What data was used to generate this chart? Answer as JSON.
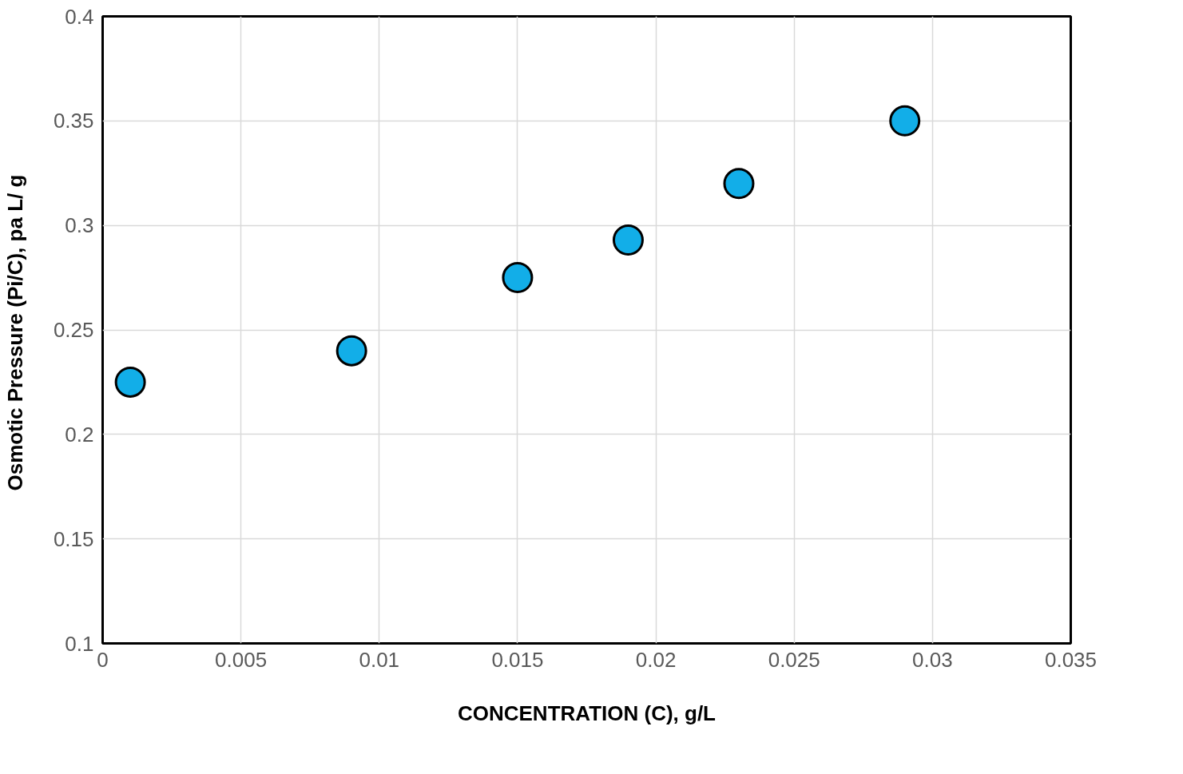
{
  "chart_data": {
    "type": "scatter",
    "xlabel": "CONCENTRATION (C), g/L",
    "ylabel": "Osmotic Pressure  (Pi/C), pa L/ g",
    "x": [
      0.001,
      0.009,
      0.015,
      0.019,
      0.023,
      0.029
    ],
    "series": [
      {
        "color": "#12aee8",
        "values": [
          0.225,
          0.24,
          0.275,
          0.293,
          0.32,
          0.35
        ]
      }
    ],
    "xlim": [
      0,
      0.035
    ],
    "xticks": [
      0,
      0.005,
      0.01,
      0.015,
      0.02,
      0.025,
      0.03,
      0.035
    ],
    "ylim": [
      0.1,
      0.4
    ],
    "yticks": [
      0.1,
      0.15,
      0.2,
      0.25,
      0.3,
      0.35,
      0.4
    ],
    "grid": true,
    "marker": "circle"
  }
}
